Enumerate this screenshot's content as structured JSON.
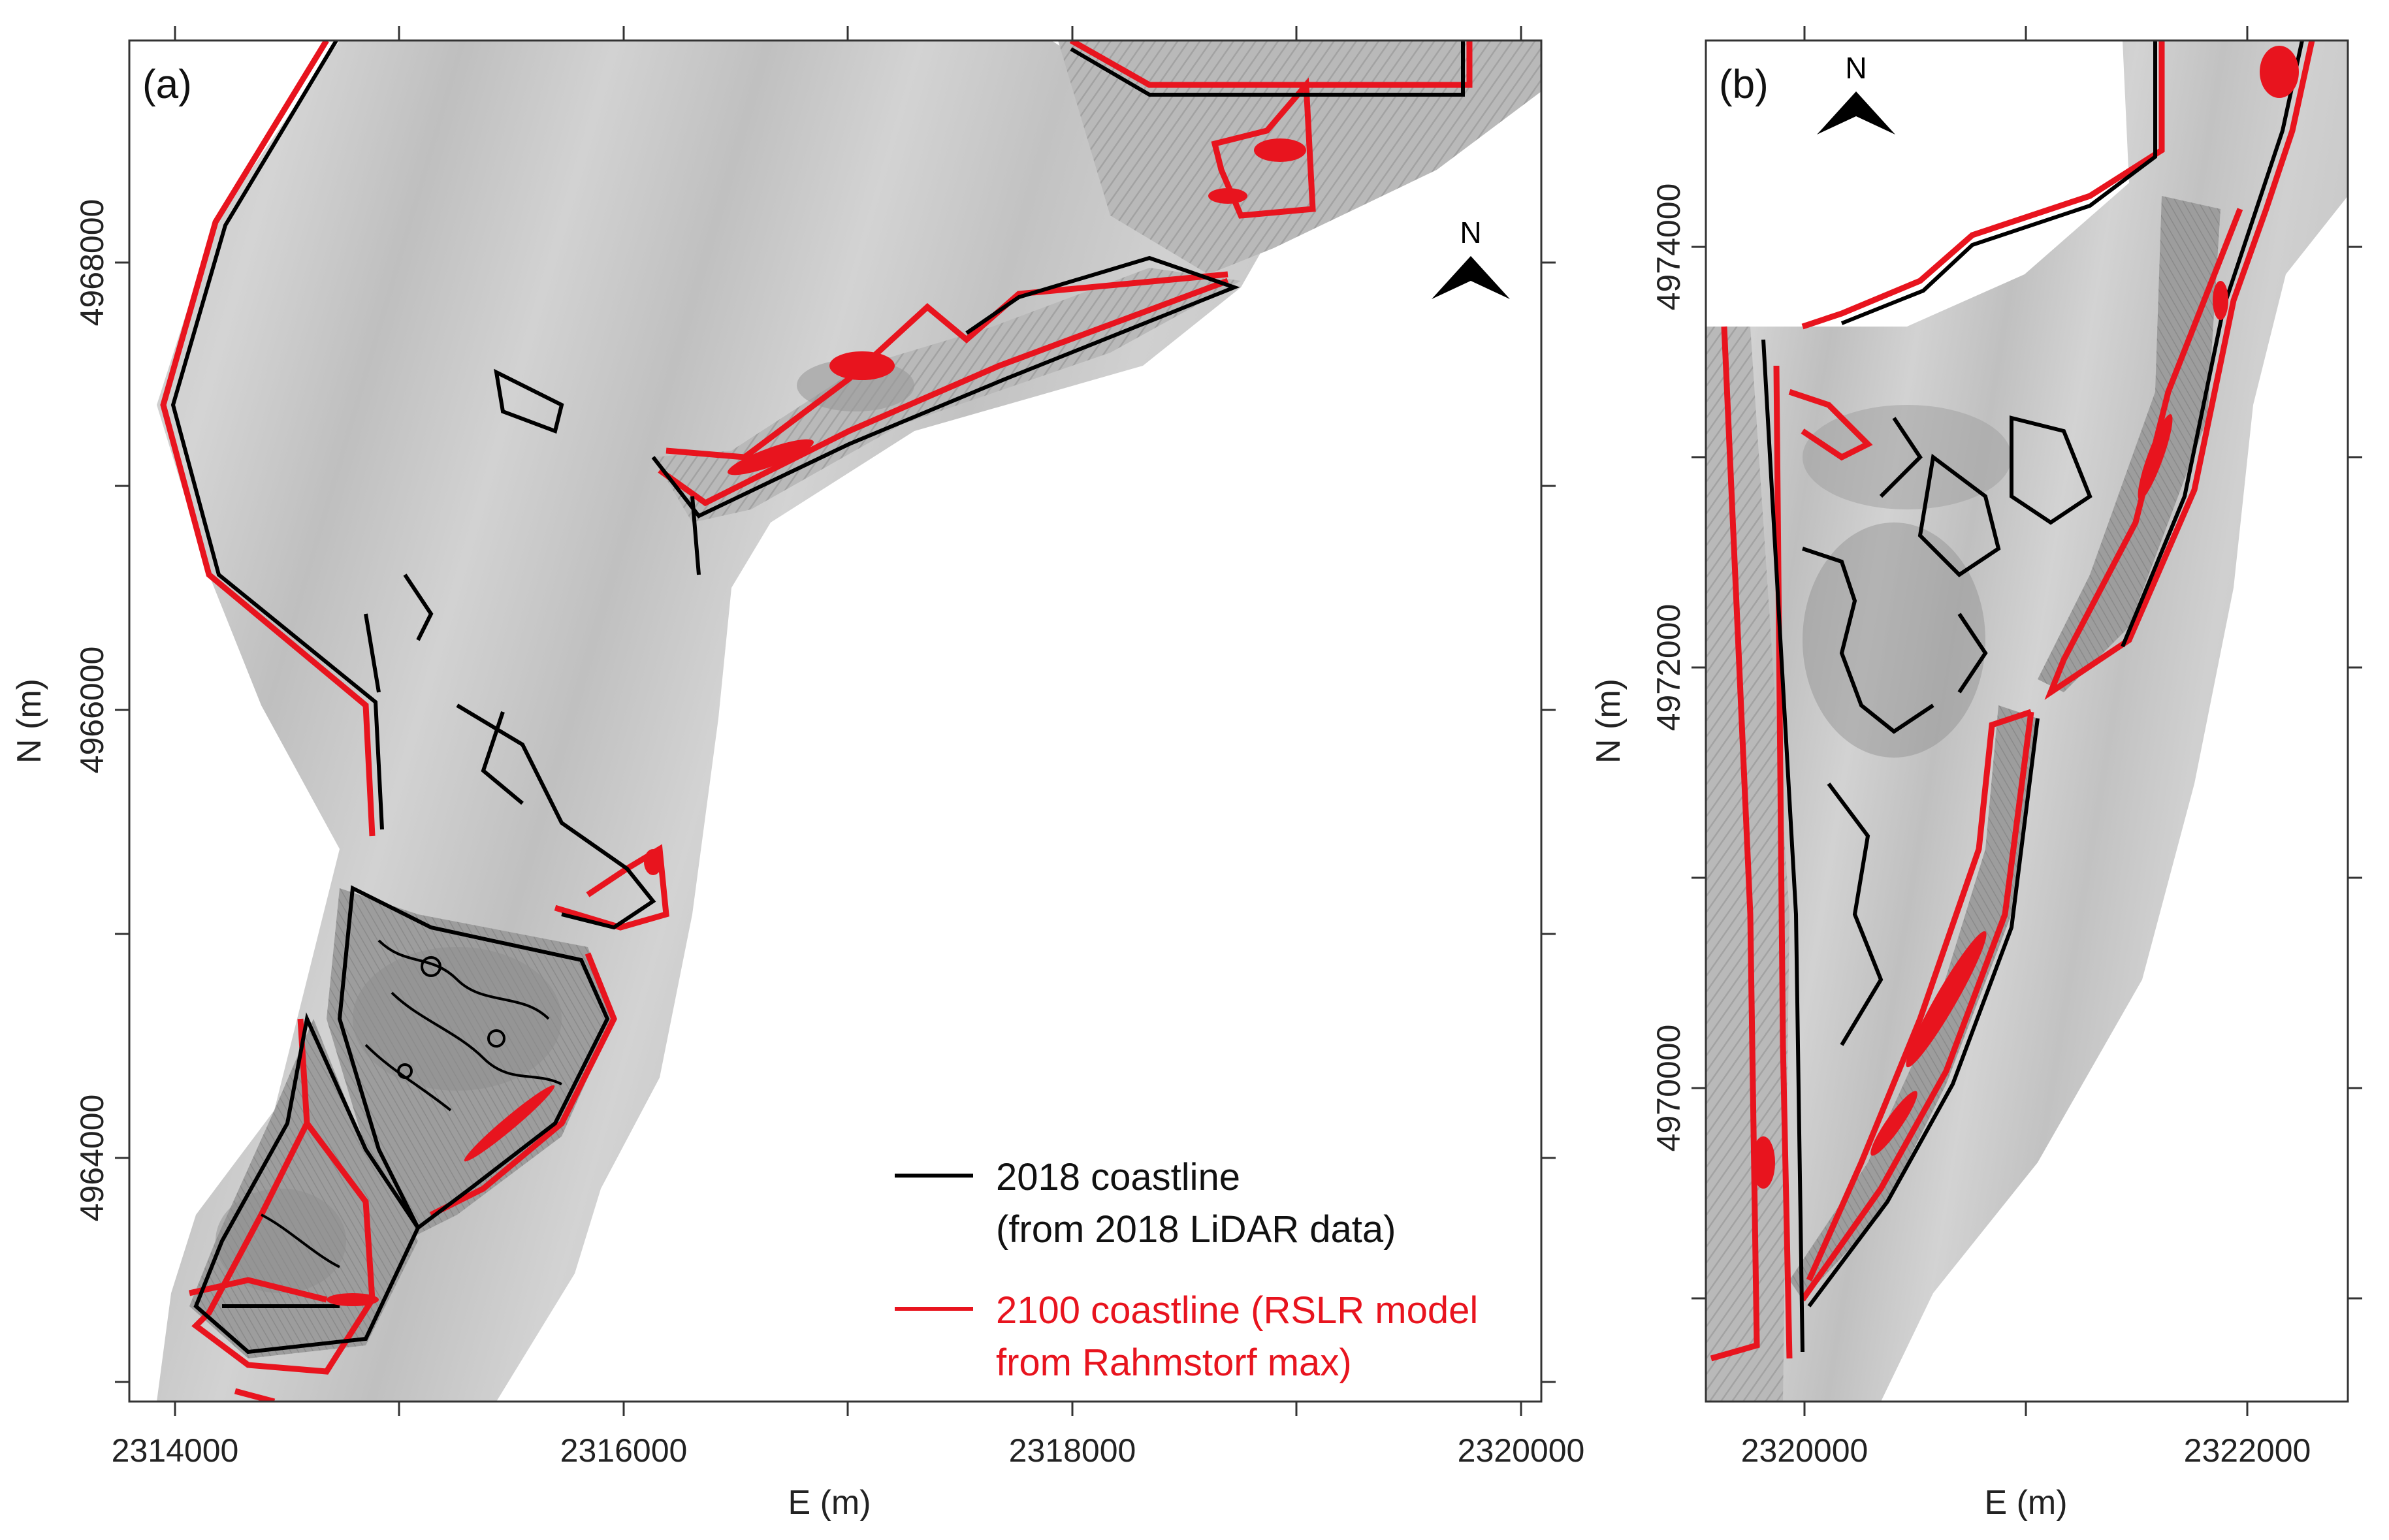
{
  "panels": [
    {
      "label": "(a)",
      "north": "N",
      "x_label": "E (m)",
      "y_label": "N (m)",
      "x_ticks": [
        "2314000",
        "2316000",
        "2318000",
        "2320000"
      ],
      "y_ticks": [
        "4964000",
        "4966000",
        "4968000"
      ]
    },
    {
      "label": "(b)",
      "north": "N",
      "x_label": "E (m)",
      "y_label": "N (m)",
      "x_ticks": [
        "2320000",
        "2322000"
      ],
      "y_ticks": [
        "4970000",
        "4972000",
        "4974000"
      ]
    }
  ],
  "legend": {
    "items": [
      {
        "line1": "2018 coastline",
        "line2": "(from 2018 LiDAR data)",
        "color": "#000000"
      },
      {
        "line1": "2100 coastline (RSLR model",
        "line2": "from Rahmstorf max)",
        "color": "#e8141e"
      }
    ]
  },
  "colors": {
    "terrain_light": "#c9c9c9",
    "terrain_mid": "#a8a8a8",
    "coast_2018": "#000000",
    "coast_2100": "#e8141e"
  }
}
